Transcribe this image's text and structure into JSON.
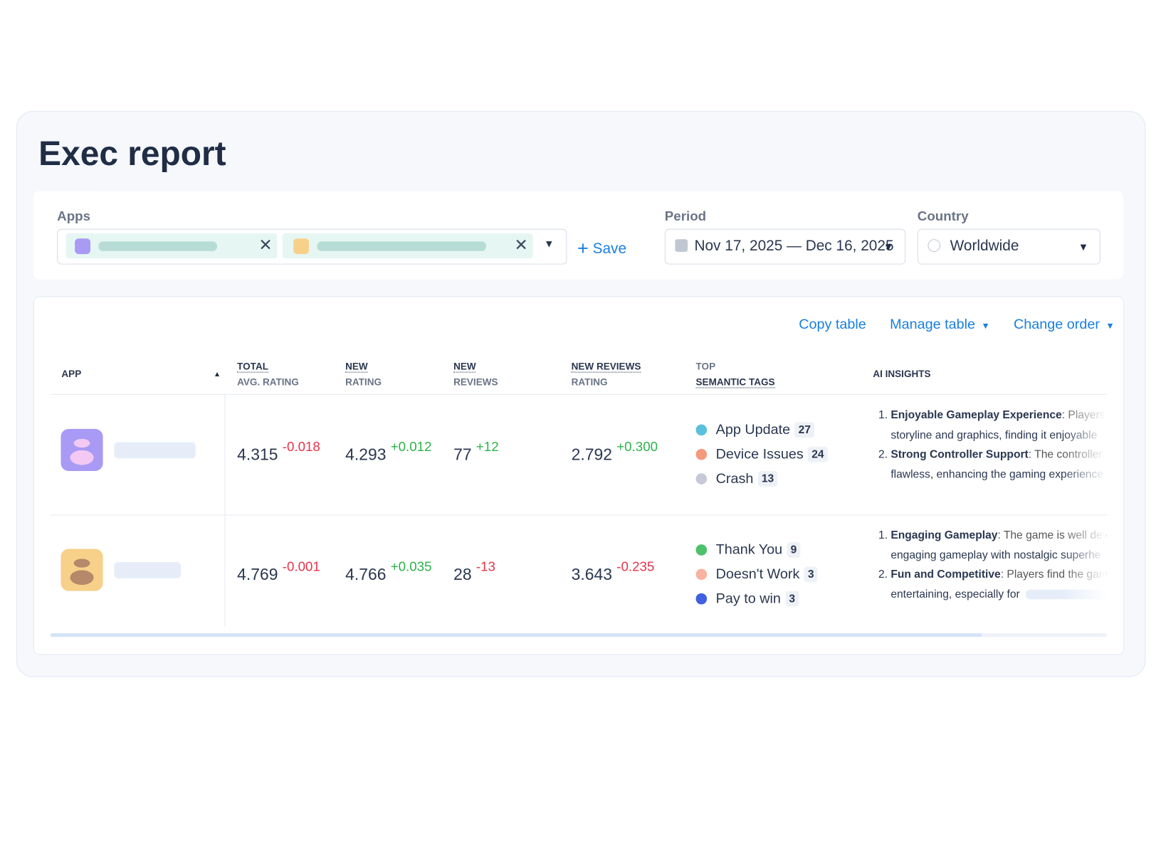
{
  "title": "Exec report",
  "filters": {
    "apps_label": "Apps",
    "save": "Save",
    "period_label": "Period",
    "period_value": "Nov 17, 2025 — Dec 16, 2025",
    "country_label": "Country",
    "country_value": "Worldwide"
  },
  "actions": [
    "Copy table",
    "Manage table",
    "Change order"
  ],
  "table": {
    "columns": [
      {
        "top": "APP"
      },
      {
        "top": "TOTAL",
        "bottom": "AVG. RATING"
      },
      {
        "top": "NEW",
        "bottom": "RATING"
      },
      {
        "top": "NEW",
        "bottom": "REVIEWS"
      },
      {
        "top": "NEW REVIEWS",
        "bottom": "RATING"
      },
      {
        "top": "TOP",
        "bottom": "SEMANTIC TAGS"
      },
      {
        "top": "AI INSIGHTS"
      }
    ],
    "rows": [
      {
        "cells": [
          {
            "value": "4.315",
            "delta": "-0.018"
          },
          {
            "value": "4.293",
            "delta": "+0.012"
          },
          {
            "value": "77",
            "delta": "+12"
          },
          {
            "value": "2.792",
            "delta": "+0.300"
          }
        ],
        "tags": [
          {
            "name": "App Update",
            "count": 27,
            "color": "#5bc0de"
          },
          {
            "name": "Device Issues",
            "count": 24,
            "color": "#f59a7c"
          },
          {
            "name": "Crash",
            "count": 13,
            "color": "#c7c9d9"
          }
        ],
        "insights": [
          {
            "title": "Enjoyable Gameplay Experience",
            "lines": [
              ": Players a",
              "storyline and graphics, finding it enjoyable"
            ]
          },
          {
            "title": "Strong Controller Support",
            "lines": [
              ": The controller",
              "flawless, enhancing the gaming experience"
            ]
          }
        ]
      },
      {
        "cells": [
          {
            "value": "4.769",
            "delta": "-0.001"
          },
          {
            "value": "4.766",
            "delta": "+0.035"
          },
          {
            "value": "28",
            "delta": "-13"
          },
          {
            "value": "3.643",
            "delta": "-0.235"
          }
        ],
        "tags": [
          {
            "name": "Thank You",
            "count": 9,
            "color": "#4cc26a"
          },
          {
            "name": "Doesn't Work",
            "count": 3,
            "color": "#f7b3a0"
          },
          {
            "name": "Pay to win",
            "count": 3,
            "color": "#4060e0"
          }
        ],
        "insights": [
          {
            "title": "Engaging Gameplay",
            "lines": [
              ": The game is well deve",
              "engaging gameplay with nostalgic superhe"
            ]
          },
          {
            "title": "Fun and Competitive",
            "lines": [
              ": Players find the gam",
              "entertaining, especially for"
            ]
          }
        ]
      }
    ]
  }
}
